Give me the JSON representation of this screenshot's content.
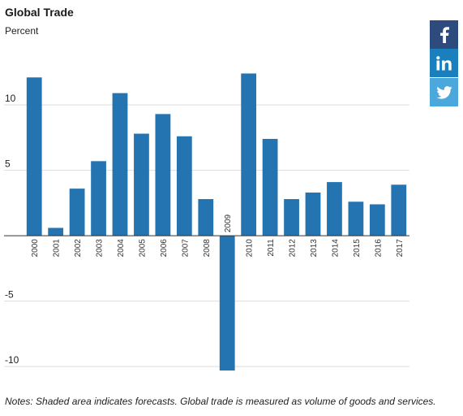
{
  "chart_data": {
    "type": "bar",
    "title": "Global Trade",
    "ylabel": "Percent",
    "categories": [
      "2000",
      "2001",
      "2002",
      "2003",
      "2004",
      "2005",
      "2006",
      "2007",
      "2008",
      "2009",
      "2010",
      "2011",
      "2012",
      "2013",
      "2014",
      "2015",
      "2016",
      "2017"
    ],
    "values": [
      12.1,
      0.6,
      3.6,
      5.7,
      10.9,
      7.8,
      9.3,
      7.6,
      2.8,
      -10.3,
      12.4,
      7.4,
      2.8,
      3.3,
      4.1,
      2.6,
      2.4,
      3.9
    ],
    "ylim": [
      -10.3,
      12.8
    ],
    "yticks": [
      10,
      5,
      -5,
      -10
    ],
    "grid": true,
    "bar_color": "#2474b1"
  },
  "notes": "Notes: Shaded area indicates forecasts. Global trade is measured as volume of goods and services.",
  "share": {
    "facebook": "facebook-icon",
    "linkedin": "linkedin-icon",
    "twitter": "twitter-icon"
  }
}
